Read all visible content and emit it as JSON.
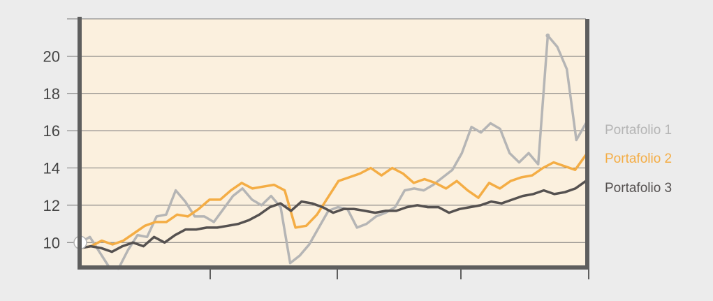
{
  "chart_data": {
    "type": "line",
    "title": "",
    "xlabel": "",
    "ylabel": "",
    "ylim": [
      8.7,
      22
    ],
    "yticks": [
      10,
      12,
      14,
      16,
      18,
      20
    ],
    "grid": true,
    "legend_placement": "right",
    "colors": {
      "background": "#ececec",
      "plot_background": "#fbf0de",
      "axis": "#5e5e5e",
      "gridline": "#777777"
    },
    "series": [
      {
        "name": "Portafolio 1",
        "color": "#b5b5b5",
        "values": [
          10.0,
          10.3,
          9.5,
          8.7,
          8.6,
          9.6,
          10.4,
          10.3,
          11.4,
          11.5,
          12.8,
          12.2,
          11.4,
          11.4,
          11.1,
          11.8,
          12.5,
          12.9,
          12.3,
          12.0,
          12.5,
          11.9,
          8.9,
          9.3,
          9.9,
          10.8,
          11.7,
          11.9,
          11.8,
          10.8,
          11.0,
          11.4,
          11.6,
          11.9,
          12.8,
          12.9,
          12.8,
          13.1,
          13.5,
          13.9,
          14.8,
          16.2,
          15.9,
          16.4,
          16.1,
          14.8,
          14.3,
          14.8,
          14.2,
          21.1,
          20.5,
          19.3,
          15.5,
          16.4
        ]
      },
      {
        "name": "Portafolio 2",
        "color": "#f4ad45",
        "values": [
          9.7,
          9.8,
          10.1,
          9.9,
          10.1,
          10.5,
          10.9,
          11.1,
          11.1,
          11.5,
          11.4,
          11.8,
          12.3,
          12.3,
          12.8,
          13.2,
          12.9,
          13.0,
          13.1,
          12.8,
          10.8,
          10.9,
          11.5,
          12.4,
          13.3,
          13.5,
          13.7,
          14.0,
          13.6,
          14.0,
          13.7,
          13.2,
          13.4,
          13.2,
          12.9,
          13.3,
          12.8,
          12.4,
          13.2,
          12.9,
          13.3,
          13.5,
          13.6,
          14.0,
          14.3,
          14.1,
          13.9,
          14.7
        ]
      },
      {
        "name": "Portafolio 3",
        "color": "#555150",
        "values": [
          9.7,
          9.8,
          9.7,
          9.5,
          9.8,
          10.0,
          9.8,
          10.3,
          10.0,
          10.4,
          10.7,
          10.7,
          10.8,
          10.8,
          10.9,
          11.0,
          11.2,
          11.5,
          11.9,
          12.1,
          11.7,
          12.2,
          12.1,
          11.9,
          11.6,
          11.8,
          11.8,
          11.7,
          11.6,
          11.7,
          11.7,
          11.9,
          12.0,
          11.9,
          11.9,
          11.6,
          11.8,
          11.9,
          12.0,
          12.2,
          12.1,
          12.3,
          12.5,
          12.6,
          12.8,
          12.6,
          12.7,
          12.9,
          13.3
        ]
      }
    ]
  }
}
